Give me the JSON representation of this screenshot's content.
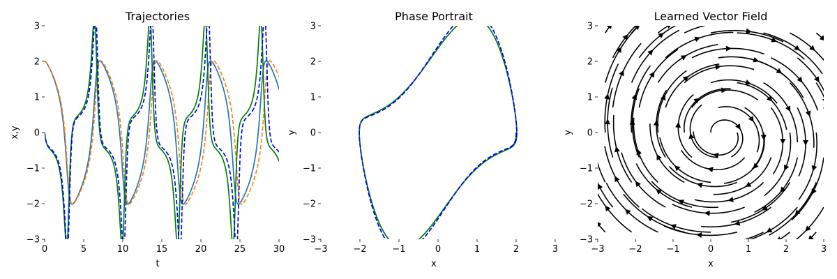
{
  "chart_data": [
    {
      "type": "line",
      "title": "Trajectories",
      "xlabel": "t",
      "ylabel": "x,y",
      "xlim": [
        0,
        30
      ],
      "ylim": [
        -3,
        3
      ],
      "xticks": [
        "0",
        "5",
        "10",
        "15",
        "20",
        "25",
        "30"
      ],
      "yticks": [
        "3",
        "2",
        "1",
        "0",
        "−1",
        "−2",
        "−3"
      ],
      "grid": false,
      "legend": "none",
      "series": [
        {
          "color": "#1f77b4",
          "style": "solid",
          "dynamics": "true-x",
          "t_range": [
            0,
            30
          ]
        },
        {
          "color": "#ff7f0e",
          "style": "dashed",
          "dynamics": "model-x",
          "t_range": [
            0,
            30
          ]
        },
        {
          "color": "#008000",
          "style": "solid",
          "dynamics": "true-y",
          "t_range": [
            0,
            30
          ]
        },
        {
          "color": "#0000ff",
          "style": "dashed",
          "dynamics": "model-y",
          "t_range": [
            0,
            30
          ]
        }
      ]
    },
    {
      "type": "line",
      "title": "Phase Portrait",
      "xlabel": "x",
      "ylabel": "y",
      "xlim": [
        -3,
        3
      ],
      "ylim": [
        -3,
        3
      ],
      "xticks": [
        "−3",
        "−2",
        "−1",
        "0",
        "1",
        "2",
        "3"
      ],
      "yticks": [
        "3",
        "2",
        "1",
        "0",
        "−1",
        "−2",
        "−3"
      ],
      "grid": false,
      "legend": "none",
      "series": [
        {
          "color": "#008000",
          "style": "solid",
          "shape": "limit-cycle"
        },
        {
          "color": "#0000ff",
          "style": "dashed",
          "shape": "limit-cycle"
        }
      ]
    },
    {
      "type": "streamplot",
      "title": "Learned Vector Field",
      "xlabel": "x",
      "ylabel": "y",
      "xlim": [
        -3,
        3
      ],
      "ylim": [
        -3,
        3
      ],
      "xticks": [
        "−3",
        "−2",
        "−1",
        "0",
        "1",
        "2",
        "3"
      ],
      "yticks": [
        "3",
        "2",
        "1",
        "0",
        "−1",
        "−2",
        "−3"
      ],
      "grid": false,
      "legend": "none",
      "color": "#000000",
      "center": [
        0.3,
        0.0
      ]
    }
  ]
}
